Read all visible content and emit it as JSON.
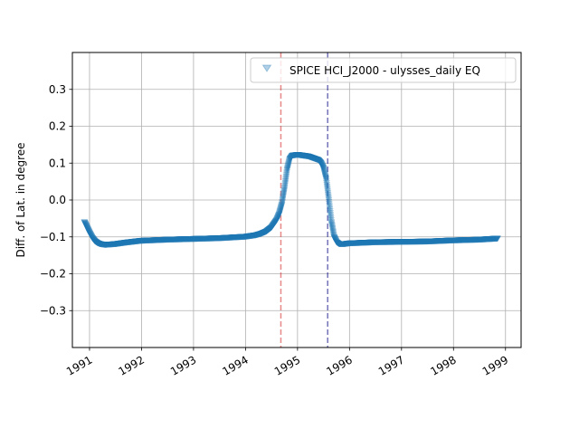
{
  "chart_data": {
    "type": "scatter",
    "title": "",
    "xlabel": "",
    "ylabel": "Diff. of Lat. in degree",
    "xlim": [
      1990.67,
      1999.3
    ],
    "ylim": [
      -0.4,
      0.4
    ],
    "x_ticks": [
      1991,
      1992,
      1993,
      1994,
      1995,
      1996,
      1997,
      1998,
      1999
    ],
    "x_tick_labels": [
      "1991",
      "1992",
      "1993",
      "1994",
      "1995",
      "1996",
      "1997",
      "1998",
      "1999"
    ],
    "y_ticks": [
      -0.3,
      -0.2,
      -0.1,
      0.0,
      0.1,
      0.2,
      0.3
    ],
    "y_tick_labels": [
      "−0.3",
      "−0.2",
      "−0.1",
      "0.0",
      "0.1",
      "0.2",
      "0.3"
    ],
    "grid": true,
    "legend_position": "top-right",
    "series": [
      {
        "name": "SPICE HCI_J2000 - ulysses_daily EQ",
        "marker": "triangle-down",
        "color": "#1f77b4",
        "x": [
          1990.9,
          1990.95,
          1991.0,
          1991.05,
          1991.1,
          1991.15,
          1991.2,
          1991.3,
          1991.5,
          1991.7,
          1992.0,
          1992.5,
          1993.0,
          1993.5,
          1994.0,
          1994.2,
          1994.3,
          1994.4,
          1994.5,
          1994.6,
          1994.65,
          1994.7,
          1994.75,
          1994.8,
          1994.85,
          1994.9,
          1995.0,
          1995.2,
          1995.4,
          1995.45,
          1995.5,
          1995.55,
          1995.6,
          1995.65,
          1995.7,
          1995.75,
          1995.8,
          1995.9,
          1996.0,
          1996.5,
          1997.0,
          1997.5,
          1998.0,
          1998.5,
          1998.85
        ],
        "y": [
          -0.06,
          -0.075,
          -0.09,
          -0.103,
          -0.112,
          -0.117,
          -0.12,
          -0.122,
          -0.12,
          -0.116,
          -0.111,
          -0.108,
          -0.106,
          -0.104,
          -0.1,
          -0.096,
          -0.092,
          -0.086,
          -0.075,
          -0.055,
          -0.038,
          -0.012,
          0.03,
          0.08,
          0.11,
          0.12,
          0.122,
          0.118,
          0.108,
          0.1,
          0.085,
          0.055,
          0.0,
          -0.06,
          -0.1,
          -0.115,
          -0.12,
          -0.12,
          -0.118,
          -0.115,
          -0.114,
          -0.113,
          -0.11,
          -0.108,
          -0.105
        ]
      }
    ],
    "vertical_lines": [
      {
        "x": 1994.68,
        "color": "#d62728",
        "style": "dashed"
      },
      {
        "x": 1995.58,
        "color": "#000080",
        "style": "dashed"
      }
    ]
  }
}
